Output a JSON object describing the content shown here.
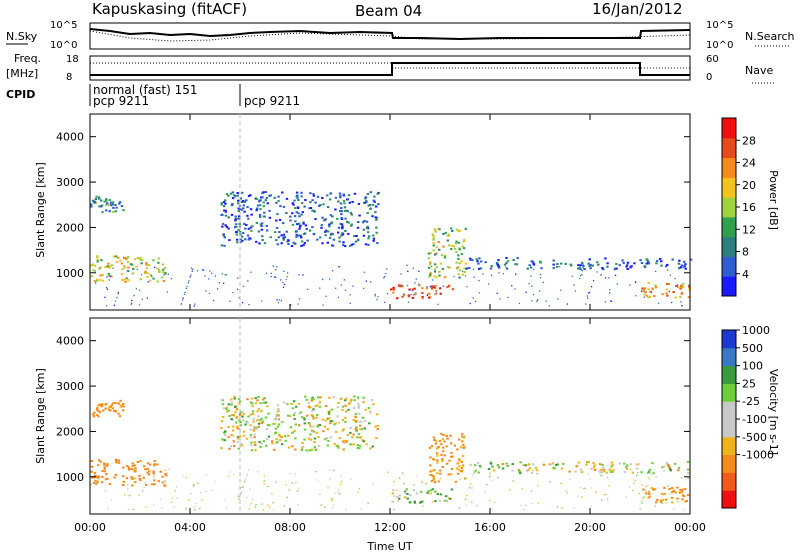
{
  "header": {
    "station": "Kapuskasing (fitACF)",
    "beam": "Beam 04",
    "date": "16/Jan/2012"
  },
  "top_panels": {
    "nsky_label": "N.Sky",
    "nsky_ticks": [
      "10^5",
      "10^0"
    ],
    "nsearch_label": "N.Search",
    "nsearch_ticks": [
      "10^5",
      "10^0"
    ],
    "freq_label_1": "Freq.",
    "freq_label_2": "[MHz]",
    "freq_ticks": [
      "18",
      "8"
    ],
    "nave_label": "Nave",
    "nave_ticks": [
      "60",
      "0"
    ],
    "cpid_label": "CPID",
    "cpid_entries": [
      {
        "line1": "normal (fast) 151",
        "line2": "pcp 9211"
      },
      {
        "line1": "",
        "line2": "pcp 9211"
      }
    ]
  },
  "x_ticks": [
    "00:00",
    "04:00",
    "08:00",
    "12:00",
    "16:00",
    "20:00",
    "00:00"
  ],
  "x_label": "Time UT",
  "colors": {
    "power_scale": [
      "#1a1aff",
      "#2e5ed1",
      "#2e7f7f",
      "#2fa14e",
      "#9fd23c",
      "#f3c21c",
      "#f58a1a",
      "#e84a1c",
      "#f01010"
    ],
    "velocity_scale": [
      "#f01010",
      "#f25a1a",
      "#f38a1a",
      "#f0b41a",
      "#c8c8c8",
      "#c8c8c8",
      "#6ccf3a",
      "#3c9a3c",
      "#3a78c8",
      "#1a3ad2"
    ]
  },
  "chart_data": [
    {
      "type": "heatmap",
      "title": "",
      "ylabel": "Slant Range [km]",
      "xlabel": "",
      "ylim": [
        180,
        4500
      ],
      "y_ticks": [
        "1000",
        "2000",
        "3000",
        "4000"
      ],
      "colorbar_label": "Power [dB]",
      "colorbar_ticks": [
        "28",
        "24",
        "20",
        "16",
        "12",
        "8",
        "4"
      ],
      "colorbar_range": [
        0,
        32
      ],
      "features": [
        {
          "t_start": 0.0,
          "t_end": 3.0,
          "range_low": 800,
          "range_high": 1400,
          "value": 18
        },
        {
          "t_start": 0.0,
          "t_end": 1.3,
          "range_low": 2350,
          "range_high": 2700,
          "value": 10
        },
        {
          "t_start": 5.2,
          "t_end": 11.5,
          "range_low": 1600,
          "range_high": 2800,
          "value": 6
        },
        {
          "t_start": 12.0,
          "t_end": 14.5,
          "range_low": 450,
          "range_high": 750,
          "value": 26
        },
        {
          "t_start": 13.5,
          "t_end": 15.0,
          "range_low": 900,
          "range_high": 2000,
          "value": 16
        },
        {
          "t_start": 15.0,
          "t_end": 24.0,
          "range_low": 1100,
          "range_high": 1350,
          "value": 6
        },
        {
          "t_start": 22.0,
          "t_end": 24.0,
          "range_low": 450,
          "range_high": 800,
          "value": 22
        }
      ]
    },
    {
      "type": "heatmap",
      "title": "",
      "ylabel": "Slant Range [km]",
      "xlabel": "Time UT",
      "ylim": [
        180,
        4500
      ],
      "y_ticks": [
        "1000",
        "2000",
        "3000",
        "4000"
      ],
      "colorbar_label": "Velocity [m s-1]",
      "colorbar_ticks": [
        "1000",
        "500",
        "100",
        "25",
        "-25",
        "-100",
        "-500",
        "-1000"
      ],
      "features": [
        {
          "t_start": 0.0,
          "t_end": 3.0,
          "range_low": 800,
          "range_high": 1400,
          "value": -300
        },
        {
          "t_start": 0.0,
          "t_end": 1.3,
          "range_low": 2350,
          "range_high": 2700,
          "value": -200
        },
        {
          "t_start": 5.2,
          "t_end": 11.5,
          "range_low": 1600,
          "range_high": 2800,
          "value": 0
        },
        {
          "t_start": 12.0,
          "t_end": 14.5,
          "range_low": 450,
          "range_high": 750,
          "value": 80
        },
        {
          "t_start": 13.5,
          "t_end": 15.0,
          "range_low": 900,
          "range_high": 2000,
          "value": -150
        },
        {
          "t_start": 15.0,
          "t_end": 24.0,
          "range_low": 1100,
          "range_high": 1350,
          "value": 0
        },
        {
          "t_start": 22.0,
          "t_end": 24.0,
          "range_low": 450,
          "range_high": 800,
          "value": -200
        }
      ]
    }
  ]
}
